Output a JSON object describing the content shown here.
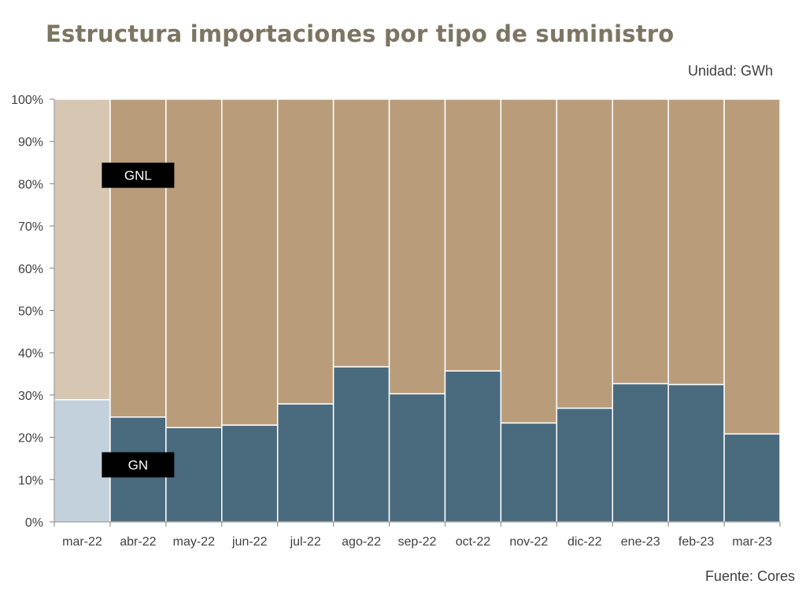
{
  "title": "Estructura importaciones por tipo de suministro",
  "unit_note": "Unidad: GWh",
  "source_note": "Fuente: Cores",
  "colors": {
    "gn": "#4a6a7e",
    "gnl": "#b99d7b",
    "gn_highlight": "#c3d1dc",
    "gnl_highlight": "#d7c6b1",
    "axis": "#7f7f7f"
  },
  "chart_data": {
    "type": "bar",
    "stacked": true,
    "categories": [
      "mar-22",
      "abr-22",
      "may-22",
      "jun-22",
      "jul-22",
      "ago-22",
      "sep-22",
      "oct-22",
      "nov-22",
      "dic-22",
      "ene-23",
      "feb-23",
      "mar-23"
    ],
    "series": [
      {
        "name": "GN",
        "values": [
          28.9,
          24.8,
          22.3,
          22.9,
          27.9,
          36.7,
          30.3,
          35.7,
          23.4,
          26.9,
          32.7,
          32.5,
          20.8
        ]
      },
      {
        "name": "GNL",
        "values": [
          71.1,
          75.2,
          77.7,
          77.1,
          72.1,
          63.3,
          69.7,
          64.3,
          76.6,
          73.1,
          67.3,
          67.5,
          79.2
        ]
      }
    ],
    "highlighted_category": "mar-22",
    "ylim": [
      0,
      100
    ],
    "yticks": [
      "0%",
      "10%",
      "20%",
      "30%",
      "40%",
      "50%",
      "60%",
      "70%",
      "80%",
      "90%",
      "100%"
    ],
    "xlabel": "",
    "ylabel": "",
    "grid": false,
    "legend": "inline labels"
  }
}
